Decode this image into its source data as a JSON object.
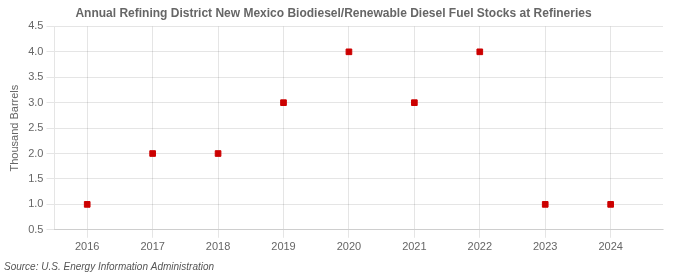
{
  "chart_data": {
    "type": "scatter",
    "title": "Annual Refining District New Mexico Biodiesel/Renewable Diesel Fuel Stocks at Refineries",
    "ylabel": "Thousand Barrels",
    "annotations": [
      "Source: U.S. Energy Information Administration"
    ],
    "x": [
      2016,
      2017,
      2018,
      2019,
      2020,
      2021,
      2022,
      2023,
      2024
    ],
    "values": [
      1.0,
      2.0,
      2.0,
      3.0,
      4.0,
      3.0,
      4.0,
      1.0,
      1.0
    ],
    "color": "#CC0000",
    "marker": "square",
    "xlim": [
      2015.5,
      2024.8
    ],
    "xticks": [
      2016,
      2017,
      2018,
      2019,
      2020,
      2021,
      2022,
      2023,
      2024
    ],
    "ylim": [
      0.5,
      4.5
    ],
    "yticks": [
      0.5,
      {
        "value": 1.0,
        "label": "1.0"
      },
      1.5,
      {
        "value": 2.0,
        "label": "2.0"
      },
      2.5,
      {
        "value": 3.0,
        "label": "3.0"
      },
      3.5,
      {
        "value": 4.0,
        "label": "4.0"
      },
      4.5
    ],
    "grid": true
  }
}
